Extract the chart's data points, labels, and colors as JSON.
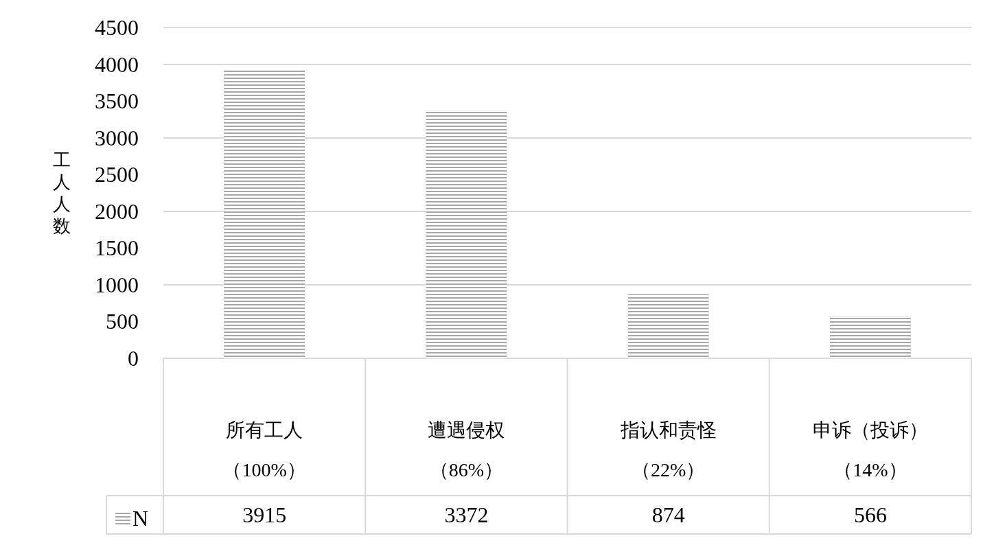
{
  "chart_data": {
    "type": "bar",
    "ylabel": "工人人数",
    "categories": [
      "所有工人（100%）",
      "遭遇侵权（86%）",
      "指认和责怪（22%）",
      "申诉（投诉）（14%）"
    ],
    "series": [
      {
        "name": "N",
        "color": "#a6a6a6",
        "values": [
          3915,
          3372,
          874,
          566
        ]
      }
    ],
    "ylim": [
      0,
      4500
    ],
    "yticks": [
      0,
      500,
      1000,
      1500,
      2000,
      2500,
      3000,
      3500,
      4000,
      4500
    ],
    "grid": "y",
    "legend": "bottom left",
    "data_labels": true
  }
}
